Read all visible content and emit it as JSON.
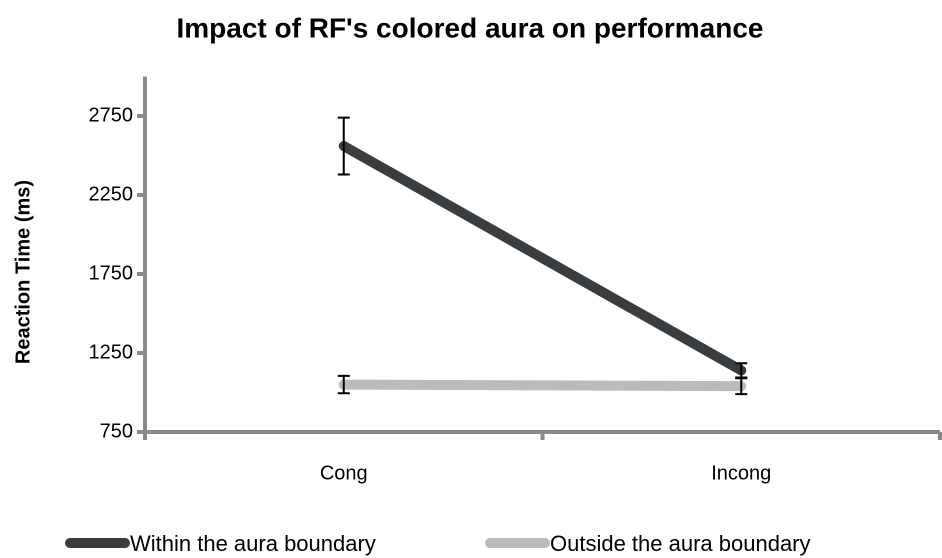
{
  "chart_data": {
    "type": "line",
    "title": "Impact of RF's colored aura on performance",
    "ylabel": "Reaction Time (ms)",
    "categories": [
      "Cong",
      "Incong"
    ],
    "series": [
      {
        "name": "Within the aura boundary",
        "color": "#3a3d40",
        "values": [
          2560,
          1140
        ],
        "errors": [
          180,
          45
        ]
      },
      {
        "name": "Outside the aura boundary",
        "color": "#b8bcbc",
        "values": [
          1050,
          1040
        ],
        "errors": [
          55,
          50
        ]
      }
    ],
    "ylim": [
      750,
      3000
    ],
    "yticks": [
      750,
      1250,
      1750,
      2250,
      2750
    ],
    "grid": false
  }
}
